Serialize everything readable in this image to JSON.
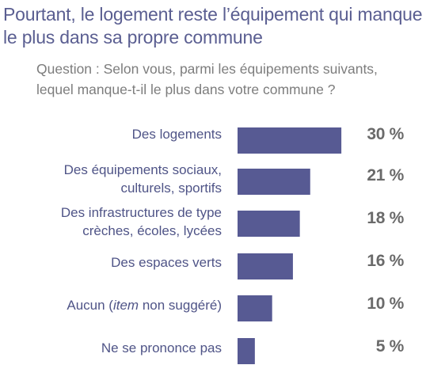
{
  "title": "Pourtant, le logement reste l’équipement qui manque le plus dans sa propre commune",
  "question": "Question : Selon vous, parmi les équipements suivants, lequel manque-t-il le plus dans votre commune ?",
  "colors": {
    "bar": "#575a93",
    "title": "#5a5e91",
    "label": "#4f5487",
    "value": "#6a6a6a"
  },
  "chart_data": {
    "type": "bar",
    "orientation": "horizontal",
    "categories": [
      "Des logements",
      "Des équipements sociaux, culturels, sportifs",
      "Des infrastructures de type crèches, écoles, lycées",
      "Des espaces verts",
      "Aucun (item non suggéré)",
      "Ne se prononce pas"
    ],
    "values": [
      30,
      21,
      18,
      16,
      10,
      5
    ],
    "value_labels": [
      "30 %",
      "21 %",
      "18 %",
      "16 %",
      "10 %",
      "5 %"
    ],
    "unit": "%",
    "grid": false,
    "legend": "none"
  }
}
